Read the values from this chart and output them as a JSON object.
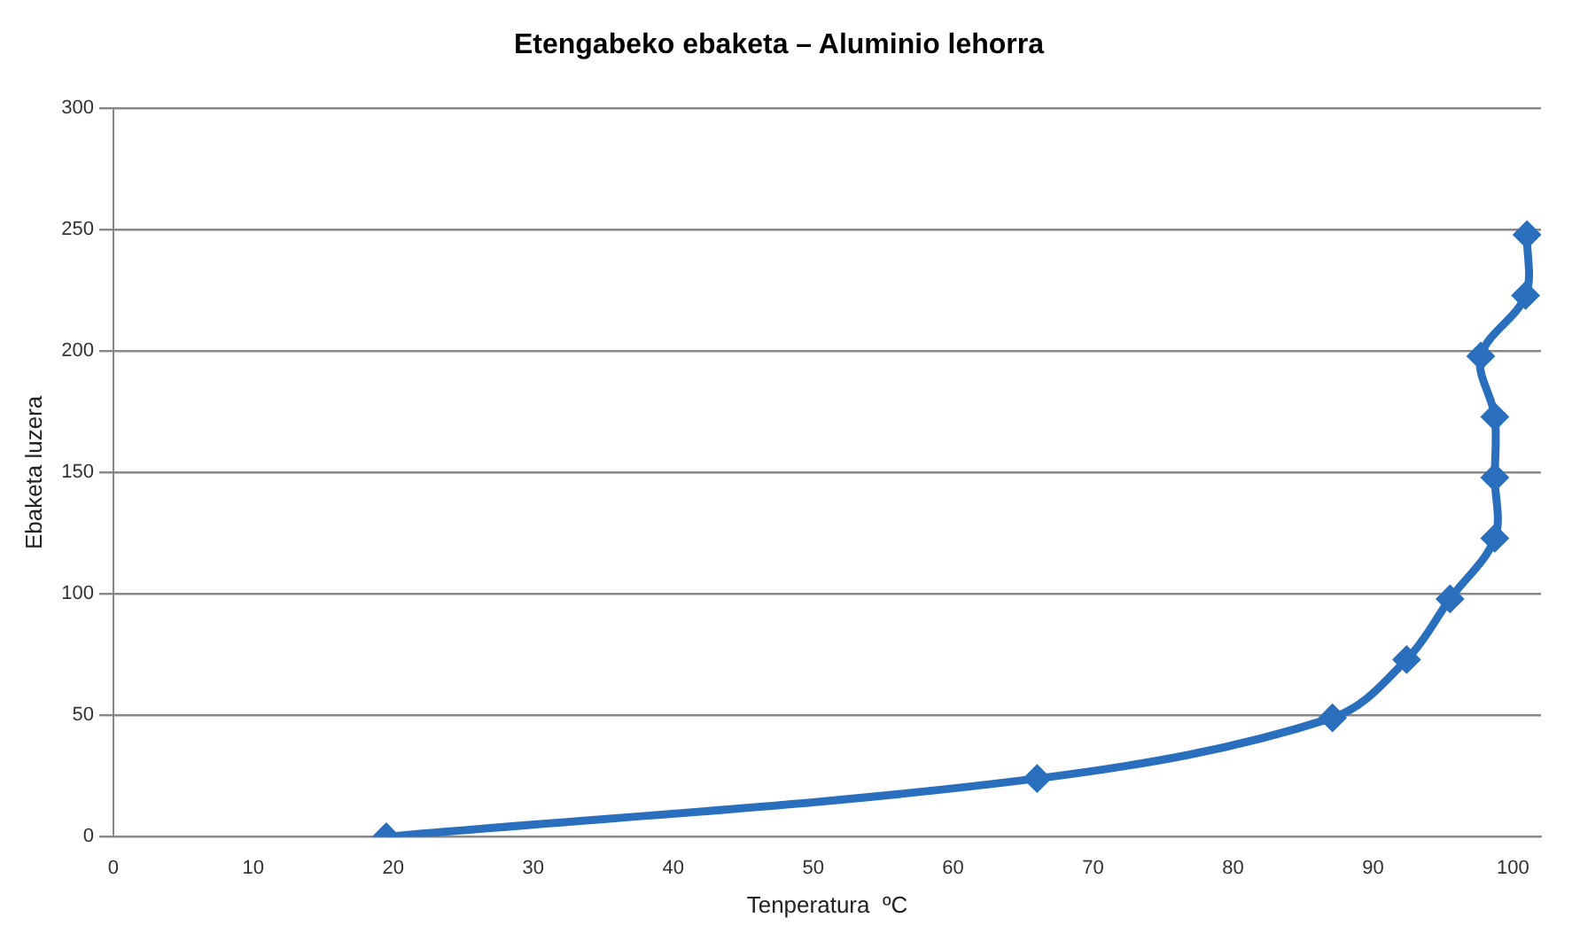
{
  "chart_data": {
    "type": "line",
    "title": "Etengabeko ebaketa – Aluminio lehorra",
    "xlabel": "Tenperatura  ºC",
    "ylabel": "Ebaketa luzera",
    "series": [
      {
        "color": "#2a6fbd",
        "x": [
          19.5,
          66,
          87.1,
          92.4,
          95.5,
          98.7,
          98.7,
          98.7,
          97.7,
          100.9,
          101
        ],
        "values": [
          0,
          24,
          49,
          73,
          98,
          123,
          148,
          173,
          198,
          223,
          248
        ]
      }
    ],
    "xlim": [
      0,
      102
    ],
    "xticks": [
      0,
      10,
      20,
      30,
      40,
      50,
      60,
      70,
      80,
      90,
      100
    ],
    "ylim": [
      0,
      300
    ],
    "yticks": [
      0,
      50,
      100,
      150,
      200,
      250,
      300
    ],
    "grid": "y",
    "legend": false,
    "marker": "diamond",
    "line_style": "solid"
  }
}
